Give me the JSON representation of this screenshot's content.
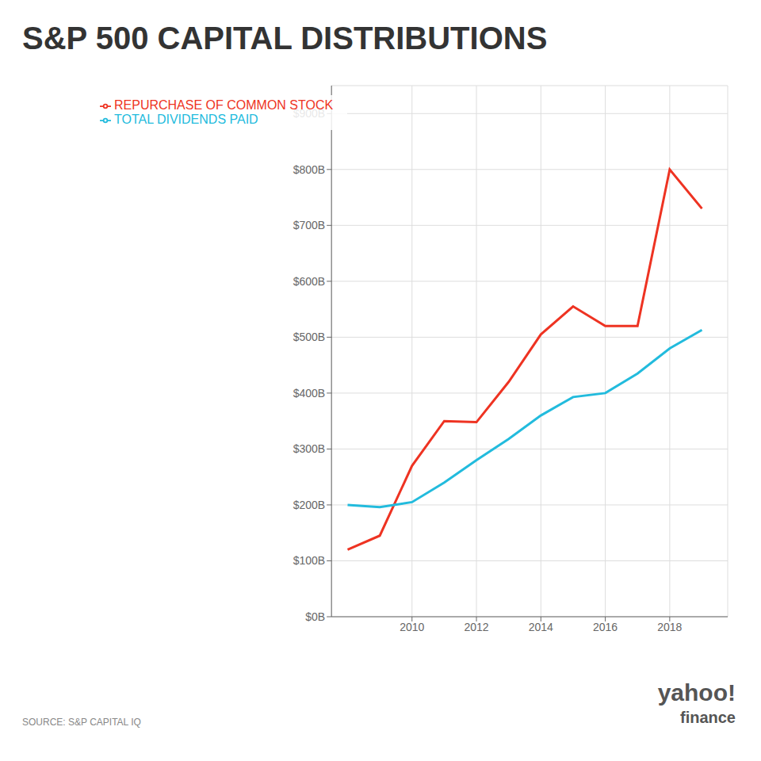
{
  "chart_data": {
    "type": "line",
    "title": "S&P 500 CAPITAL DISTRIBUTIONS",
    "x": [
      2008,
      2009,
      2010,
      2011,
      2012,
      2013,
      2014,
      2015,
      2016,
      2017,
      2018,
      2019
    ],
    "series": [
      {
        "name": "REPURCHASE OF COMMON STOCK",
        "color": "#ee3322",
        "values": [
          120,
          145,
          270,
          350,
          348,
          420,
          505,
          555,
          520,
          520,
          800,
          730
        ]
      },
      {
        "name": "TOTAL DIVIDENDS PAID",
        "color": "#22bbdd",
        "values": [
          200,
          196,
          205,
          240,
          280,
          318,
          360,
          393,
          400,
          435,
          480,
          513
        ]
      }
    ],
    "xlim": [
      2007.5,
      2019.8
    ],
    "ylim": [
      0,
      950
    ],
    "xticks": [
      2010,
      2012,
      2014,
      2016,
      2018
    ],
    "yticks": [
      {
        "value": 0,
        "label": "$0B"
      },
      {
        "value": 100,
        "label": "$100B"
      },
      {
        "value": 200,
        "label": "$200B"
      },
      {
        "value": 300,
        "label": "$300B"
      },
      {
        "value": 400,
        "label": "$400B"
      },
      {
        "value": 500,
        "label": "$500B"
      },
      {
        "value": 600,
        "label": "$600B"
      },
      {
        "value": 700,
        "label": "$700B"
      },
      {
        "value": 800,
        "label": "$800B"
      },
      {
        "value": 900,
        "label": "$900B"
      }
    ],
    "grid": true,
    "legend": "upper left",
    "annotations": [
      "SOURCE: S&P CAPITAL IQ",
      "yahoo!",
      "finance"
    ]
  }
}
